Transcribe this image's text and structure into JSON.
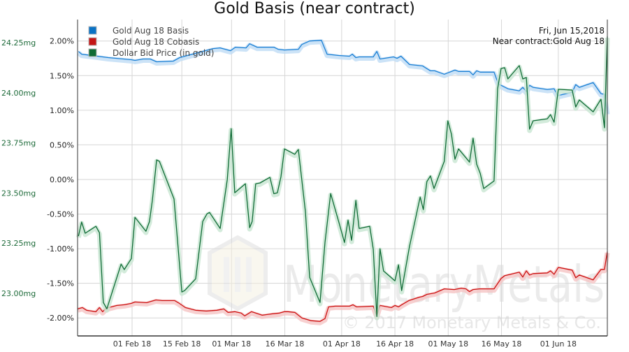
{
  "chart_data": {
    "type": "line",
    "title": "Gold Basis (near contract)",
    "x_unit": "day_of_year_2018",
    "xlim": [
      16.65,
      165.8
    ],
    "x_ticks": [
      {
        "day": 32,
        "label": "01 Feb 18"
      },
      {
        "day": 46,
        "label": "15 Feb 18"
      },
      {
        "day": 60,
        "label": "01 Mar 18"
      },
      {
        "day": 75,
        "label": "16 Mar 18"
      },
      {
        "day": 91,
        "label": "01 Apr 18"
      },
      {
        "day": 106,
        "label": "16 Apr 18"
      },
      {
        "day": 121,
        "label": "01 May 18"
      },
      {
        "day": 136,
        "label": "16 May 18"
      },
      {
        "day": 152,
        "label": "01 Jun 18"
      }
    ],
    "y_pct": {
      "ylim": [
        -2.26,
        2.31
      ],
      "ticks": [
        2.0,
        1.5,
        1.0,
        0.5,
        0.0,
        -0.5,
        -1.0,
        -1.5,
        -2.0
      ],
      "labels": [
        "2.00%",
        "1.50%",
        "1.00%",
        "0.50%",
        "0.00%",
        "-0.50%",
        "-1.00%",
        "-1.50%",
        "-2.00%"
      ]
    },
    "y_mg": {
      "ylim": [
        22.787,
        24.365
      ],
      "ticks": [
        24.25,
        24.0,
        23.75,
        23.5,
        23.25,
        23.0
      ],
      "labels": [
        "24.25mg",
        "24.00mg",
        "23.75mg",
        "23.50mg",
        "23.25mg",
        "23.00mg"
      ]
    },
    "grid": true,
    "legend_position": "top-left",
    "annotation": {
      "date": "Fri, Jun 15,2018",
      "contract": "Near contract:Gold Aug 18"
    },
    "watermark": {
      "logo_text": "MonetaryMetals",
      "copyright": "© 2017 Monetary Metals & Co."
    },
    "series": [
      {
        "name": "Gold Aug 18 Basis",
        "color": "#1a7fd4",
        "glow": "#bfdcf5",
        "axis": "pct",
        "points": [
          [
            16.9,
            1.85
          ],
          [
            17.8,
            1.81
          ],
          [
            25.3,
            1.76
          ],
          [
            31.8,
            1.73
          ],
          [
            32.8,
            1.72
          ],
          [
            35.1,
            1.74
          ],
          [
            37.1,
            1.74
          ],
          [
            38.9,
            1.7
          ],
          [
            43.6,
            1.71
          ],
          [
            45.4,
            1.76
          ],
          [
            54.8,
            1.89
          ],
          [
            56.8,
            1.9
          ],
          [
            59.7,
            1.86
          ],
          [
            61.1,
            1.91
          ],
          [
            64.1,
            1.9
          ],
          [
            65.1,
            1.96
          ],
          [
            67.2,
            1.91
          ],
          [
            71.9,
            1.91
          ],
          [
            73.1,
            1.88
          ],
          [
            74.9,
            1.87
          ],
          [
            78.8,
            1.88
          ],
          [
            79.8,
            1.95
          ],
          [
            82.0,
            2.0
          ],
          [
            85.3,
            2.01
          ],
          [
            86.9,
            1.81
          ],
          [
            90.2,
            1.79
          ],
          [
            93.2,
            1.78
          ],
          [
            94.0,
            1.81
          ],
          [
            95.0,
            1.76
          ],
          [
            95.9,
            1.77
          ],
          [
            99.9,
            1.77
          ],
          [
            100.9,
            1.85
          ],
          [
            101.8,
            1.74
          ],
          [
            105.6,
            1.77
          ],
          [
            106.6,
            1.75
          ],
          [
            107.7,
            1.78
          ],
          [
            110.1,
            1.66
          ],
          [
            113.8,
            1.64
          ],
          [
            116.0,
            1.57
          ],
          [
            117.2,
            1.57
          ],
          [
            119.9,
            1.52
          ],
          [
            122.9,
            1.58
          ],
          [
            123.9,
            1.56
          ],
          [
            127.0,
            1.56
          ],
          [
            128.0,
            1.51
          ],
          [
            129.0,
            1.57
          ],
          [
            130.0,
            1.55
          ],
          [
            133.9,
            1.55
          ],
          [
            135.1,
            1.38
          ],
          [
            137.8,
            1.31
          ],
          [
            141.0,
            1.28
          ],
          [
            142.0,
            1.33
          ],
          [
            143.0,
            1.27
          ],
          [
            143.9,
            1.36
          ],
          [
            144.9,
            1.33
          ],
          [
            148.9,
            1.3
          ],
          [
            150.8,
            1.31
          ],
          [
            151.8,
            1.21
          ],
          [
            155.9,
            1.26
          ],
          [
            156.9,
            1.37
          ],
          [
            157.9,
            1.33
          ],
          [
            161.8,
            1.4
          ],
          [
            164.0,
            1.24
          ],
          [
            165.0,
            1.23
          ],
          [
            166.0,
            0.96
          ]
        ]
      },
      {
        "name": "Gold Aug 18 Cobasis",
        "color": "#cc1111",
        "glow": "#f5c4c4",
        "axis": "pct",
        "points": [
          [
            16.7,
            -1.87
          ],
          [
            18.0,
            -1.85
          ],
          [
            19.2,
            -1.89
          ],
          [
            21.8,
            -1.91
          ],
          [
            22.8,
            -1.85
          ],
          [
            23.7,
            -1.91
          ],
          [
            24.7,
            -1.86
          ],
          [
            27.7,
            -1.82
          ],
          [
            29.8,
            -1.81
          ],
          [
            31.8,
            -1.79
          ],
          [
            32.8,
            -1.77
          ],
          [
            36.1,
            -1.78
          ],
          [
            38.7,
            -1.74
          ],
          [
            40.5,
            -1.75
          ],
          [
            44.0,
            -1.75
          ],
          [
            45.0,
            -1.78
          ],
          [
            47.0,
            -1.85
          ],
          [
            49.9,
            -1.89
          ],
          [
            52.9,
            -1.9
          ],
          [
            55.8,
            -1.89
          ],
          [
            57.8,
            -1.87
          ],
          [
            59.0,
            -1.92
          ],
          [
            60.9,
            -1.91
          ],
          [
            62.7,
            -1.93
          ],
          [
            63.7,
            -1.97
          ],
          [
            65.6,
            -1.91
          ],
          [
            68.6,
            -1.96
          ],
          [
            71.5,
            -1.94
          ],
          [
            73.5,
            -1.93
          ],
          [
            74.9,
            -1.91
          ],
          [
            75.9,
            -1.91
          ],
          [
            77.8,
            -1.92
          ],
          [
            79.8,
            -2.0
          ],
          [
            82.4,
            -2.04
          ],
          [
            84.9,
            -2.05
          ],
          [
            86.3,
            -2.01
          ],
          [
            87.3,
            -1.84
          ],
          [
            89.2,
            -1.83
          ],
          [
            93.2,
            -1.83
          ],
          [
            94.2,
            -1.81
          ],
          [
            95.2,
            -1.84
          ],
          [
            99.9,
            -1.83
          ],
          [
            100.9,
            -1.97
          ],
          [
            101.8,
            -1.82
          ],
          [
            105.0,
            -1.85
          ],
          [
            106.0,
            -1.82
          ],
          [
            107.0,
            -1.84
          ],
          [
            107.9,
            -1.81
          ],
          [
            109.9,
            -1.75
          ],
          [
            112.9,
            -1.7
          ],
          [
            113.8,
            -1.69
          ],
          [
            115.0,
            -1.66
          ],
          [
            117.2,
            -1.64
          ],
          [
            119.9,
            -1.58
          ],
          [
            122.7,
            -1.59
          ],
          [
            124.7,
            -1.57
          ],
          [
            126.0,
            -1.58
          ],
          [
            127.0,
            -1.62
          ],
          [
            128.0,
            -1.59
          ],
          [
            129.8,
            -1.58
          ],
          [
            133.9,
            -1.58
          ],
          [
            135.9,
            -1.43
          ],
          [
            136.9,
            -1.39
          ],
          [
            141.0,
            -1.34
          ],
          [
            142.0,
            -1.41
          ],
          [
            143.0,
            -1.32
          ],
          [
            143.9,
            -1.38
          ],
          [
            144.9,
            -1.36
          ],
          [
            148.9,
            -1.35
          ],
          [
            149.8,
            -1.32
          ],
          [
            150.8,
            -1.37
          ],
          [
            152.0,
            -1.27
          ],
          [
            155.9,
            -1.31
          ],
          [
            156.9,
            -1.42
          ],
          [
            157.9,
            -1.38
          ],
          [
            161.8,
            -1.45
          ],
          [
            164.0,
            -1.3
          ],
          [
            165.0,
            -1.3
          ],
          [
            166.0,
            -1.04
          ]
        ]
      },
      {
        "name": "Dollar Bid Price (in gold)",
        "color": "#0f6b35",
        "glow": "#c8e6d2",
        "axis": "mg",
        "points": [
          [
            16.9,
            23.285
          ],
          [
            17.8,
            23.355
          ],
          [
            18.8,
            23.299
          ],
          [
            21.8,
            23.334
          ],
          [
            22.8,
            23.302
          ],
          [
            23.9,
            22.954
          ],
          [
            24.9,
            22.922
          ],
          [
            28.9,
            23.145
          ],
          [
            29.8,
            23.118
          ],
          [
            31.8,
            23.173
          ],
          [
            32.8,
            23.379
          ],
          [
            35.9,
            23.309
          ],
          [
            36.9,
            23.358
          ],
          [
            37.7,
            23.463
          ],
          [
            38.9,
            23.665
          ],
          [
            39.7,
            23.658
          ],
          [
            43.8,
            23.47
          ],
          [
            46.0,
            23.006
          ],
          [
            46.8,
            23.013
          ],
          [
            49.9,
            23.072
          ],
          [
            51.9,
            23.358
          ],
          [
            53.1,
            23.396
          ],
          [
            53.8,
            23.403
          ],
          [
            56.8,
            23.323
          ],
          [
            58.8,
            23.567
          ],
          [
            59.9,
            23.821
          ],
          [
            60.9,
            23.501
          ],
          [
            63.9,
            23.546
          ],
          [
            65.1,
            23.327
          ],
          [
            65.8,
            23.358
          ],
          [
            66.8,
            23.546
          ],
          [
            68.0,
            23.55
          ],
          [
            70.8,
            23.578
          ],
          [
            71.9,
            23.497
          ],
          [
            72.9,
            23.501
          ],
          [
            73.9,
            23.581
          ],
          [
            74.9,
            23.72
          ],
          [
            77.8,
            23.693
          ],
          [
            78.8,
            23.717
          ],
          [
            80.8,
            23.407
          ],
          [
            82.0,
            23.079
          ],
          [
            84.9,
            22.954
          ],
          [
            86.3,
            23.253
          ],
          [
            87.9,
            23.497
          ],
          [
            90.2,
            23.355
          ],
          [
            91.8,
            23.253
          ],
          [
            92.8,
            23.365
          ],
          [
            93.8,
            23.264
          ],
          [
            95.0,
            23.463
          ],
          [
            95.9,
            23.323
          ],
          [
            98.9,
            23.334
          ],
          [
            99.9,
            23.219
          ],
          [
            100.9,
            22.884
          ],
          [
            101.8,
            23.222
          ],
          [
            102.8,
            23.111
          ],
          [
            106.0,
            23.062
          ],
          [
            107.0,
            23.142
          ],
          [
            107.9,
            23.013
          ],
          [
            110.1,
            23.233
          ],
          [
            113.1,
            23.48
          ],
          [
            114.0,
            23.417
          ],
          [
            115.0,
            23.557
          ],
          [
            116.0,
            23.585
          ],
          [
            117.0,
            23.522
          ],
          [
            119.9,
            23.658
          ],
          [
            120.9,
            23.86
          ],
          [
            121.9,
            23.794
          ],
          [
            122.9,
            23.668
          ],
          [
            123.9,
            23.72
          ],
          [
            127.0,
            23.654
          ],
          [
            128.0,
            23.773
          ],
          [
            129.0,
            23.644
          ],
          [
            130.0,
            23.598
          ],
          [
            131.0,
            23.522
          ],
          [
            133.9,
            23.56
          ],
          [
            134.9,
            24.02
          ],
          [
            135.9,
            24.121
          ],
          [
            136.9,
            24.125
          ],
          [
            137.8,
            24.069
          ],
          [
            141.0,
            24.135
          ],
          [
            142.0,
            24.069
          ],
          [
            143.0,
            24.076
          ],
          [
            143.9,
            23.818
          ],
          [
            144.9,
            23.86
          ],
          [
            148.9,
            23.87
          ],
          [
            149.8,
            23.891
          ],
          [
            150.8,
            23.853
          ],
          [
            152.0,
            24.017
          ],
          [
            155.9,
            24.013
          ],
          [
            156.9,
            23.929
          ],
          [
            157.9,
            23.964
          ],
          [
            161.8,
            23.905
          ],
          [
            164.0,
            23.968
          ],
          [
            165.0,
            23.825
          ],
          [
            166.0,
            24.281
          ]
        ]
      }
    ]
  }
}
